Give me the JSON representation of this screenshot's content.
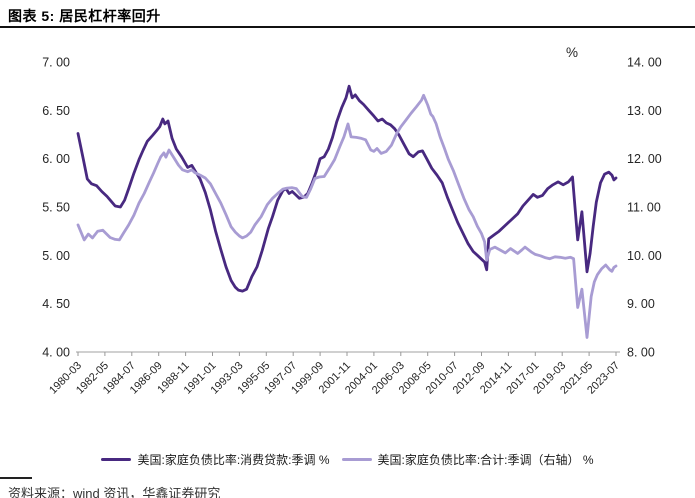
{
  "header": {
    "title": "图表 5: 居民杠杆率回升"
  },
  "footer": {
    "source": "资料来源：wind 资讯，华鑫证券研究"
  },
  "chart_data": {
    "type": "line",
    "title": "图表 5: 居民杠杆率回升",
    "unit_label": "%",
    "grid": false,
    "legend_position": "bottom",
    "left_axis": {
      "min": 4.0,
      "max": 7.0,
      "step": 0.5,
      "tick_labels": [
        "7. 00",
        "6. 50",
        "6. 00",
        "5. 50",
        "5. 00",
        "4. 50",
        "4. 00"
      ]
    },
    "right_axis": {
      "min": 8.0,
      "max": 14.0,
      "step": 1.0,
      "tick_labels": [
        "14. 00",
        "13. 00",
        "12. 00",
        "11. 00",
        "10. 00",
        "9. 00",
        "8. 00"
      ]
    },
    "x_start": "1980-03",
    "x_end": "2023-07",
    "x_tick_labels": [
      "1980-03",
      "1982-05",
      "1984-07",
      "1986-09",
      "1988-11",
      "1991-01",
      "1993-03",
      "1995-05",
      "1997-07",
      "1999-09",
      "2001-11",
      "2004-01",
      "2006-03",
      "2008-05",
      "2010-07",
      "2012-09",
      "2014-11",
      "2017-01",
      "2019-03",
      "2021-05",
      "2023-07"
    ],
    "axis_color": "#b3b3b3",
    "text_color": "#262626",
    "series": [
      {
        "name": "美国:家庭负债比率:消费贷款:季调 %",
        "axis": "left",
        "color": "#482980",
        "points": [
          [
            "1980-03",
            6.26
          ],
          [
            "1980-08",
            6.0
          ],
          [
            "1980-12",
            5.79
          ],
          [
            "1981-04",
            5.74
          ],
          [
            "1981-09",
            5.72
          ],
          [
            "1982-02",
            5.66
          ],
          [
            "1982-07",
            5.61
          ],
          [
            "1982-11",
            5.56
          ],
          [
            "1983-03",
            5.51
          ],
          [
            "1983-08",
            5.5
          ],
          [
            "1983-12",
            5.57
          ],
          [
            "1984-04",
            5.69
          ],
          [
            "1984-09",
            5.85
          ],
          [
            "1985-02",
            5.99
          ],
          [
            "1985-06",
            6.09
          ],
          [
            "1985-10",
            6.18
          ],
          [
            "1986-03",
            6.24
          ],
          [
            "1986-07",
            6.29
          ],
          [
            "1986-10",
            6.33
          ],
          [
            "1987-01",
            6.41
          ],
          [
            "1987-03",
            6.36
          ],
          [
            "1987-06",
            6.39
          ],
          [
            "1987-10",
            6.21
          ],
          [
            "1988-02",
            6.1
          ],
          [
            "1988-07",
            6.02
          ],
          [
            "1989-01",
            5.91
          ],
          [
            "1989-05",
            5.93
          ],
          [
            "1989-09",
            5.86
          ],
          [
            "1990-01",
            5.79
          ],
          [
            "1990-06",
            5.65
          ],
          [
            "1990-11",
            5.47
          ],
          [
            "1991-04",
            5.25
          ],
          [
            "1991-09",
            5.06
          ],
          [
            "1992-02",
            4.88
          ],
          [
            "1992-07",
            4.74
          ],
          [
            "1992-11",
            4.67
          ],
          [
            "1993-02",
            4.64
          ],
          [
            "1993-06",
            4.63
          ],
          [
            "1993-10",
            4.65
          ],
          [
            "1994-03",
            4.78
          ],
          [
            "1994-08",
            4.88
          ],
          [
            "1995-01",
            5.05
          ],
          [
            "1995-07",
            5.28
          ],
          [
            "1995-11",
            5.4
          ],
          [
            "1996-04",
            5.57
          ],
          [
            "1996-09",
            5.67
          ],
          [
            "1996-12",
            5.69
          ],
          [
            "1997-03",
            5.64
          ],
          [
            "1997-06",
            5.66
          ],
          [
            "1997-09",
            5.63
          ],
          [
            "1998-01",
            5.59
          ],
          [
            "1998-05",
            5.6
          ],
          [
            "1998-09",
            5.64
          ],
          [
            "1999-01",
            5.74
          ],
          [
            "1999-05",
            5.86
          ],
          [
            "1999-09",
            6.0
          ],
          [
            "2000-01",
            6.02
          ],
          [
            "2000-05",
            6.1
          ],
          [
            "2000-09",
            6.22
          ],
          [
            "2001-01",
            6.38
          ],
          [
            "2001-06",
            6.53
          ],
          [
            "2001-10",
            6.63
          ],
          [
            "2002-01",
            6.75
          ],
          [
            "2002-04",
            6.63
          ],
          [
            "2002-07",
            6.66
          ],
          [
            "2002-11",
            6.6
          ],
          [
            "2003-03",
            6.56
          ],
          [
            "2003-08",
            6.5
          ],
          [
            "2004-01",
            6.44
          ],
          [
            "2004-05",
            6.39
          ],
          [
            "2004-09",
            6.41
          ],
          [
            "2005-01",
            6.37
          ],
          [
            "2005-05",
            6.35
          ],
          [
            "2005-09",
            6.31
          ],
          [
            "2006-01",
            6.25
          ],
          [
            "2006-06",
            6.15
          ],
          [
            "2006-11",
            6.05
          ],
          [
            "2007-03",
            6.02
          ],
          [
            "2007-08",
            6.07
          ],
          [
            "2007-12",
            6.08
          ],
          [
            "2008-04",
            6.0
          ],
          [
            "2008-09",
            5.9
          ],
          [
            "2009-02",
            5.83
          ],
          [
            "2009-07",
            5.75
          ],
          [
            "2009-12",
            5.6
          ],
          [
            "2010-05",
            5.47
          ],
          [
            "2010-10",
            5.34
          ],
          [
            "2011-03",
            5.23
          ],
          [
            "2011-08",
            5.12
          ],
          [
            "2012-01",
            5.04
          ],
          [
            "2012-05",
            5.0
          ],
          [
            "2012-09",
            4.96
          ],
          [
            "2012-12",
            4.93
          ],
          [
            "2013-02",
            4.85
          ],
          [
            "2013-04",
            5.17
          ],
          [
            "2013-09",
            5.21
          ],
          [
            "2014-02",
            5.25
          ],
          [
            "2014-08",
            5.31
          ],
          [
            "2015-02",
            5.37
          ],
          [
            "2015-08",
            5.43
          ],
          [
            "2016-01",
            5.51
          ],
          [
            "2016-06",
            5.57
          ],
          [
            "2016-11",
            5.63
          ],
          [
            "2017-03",
            5.6
          ],
          [
            "2017-08",
            5.62
          ],
          [
            "2018-01",
            5.69
          ],
          [
            "2018-06",
            5.73
          ],
          [
            "2018-11",
            5.76
          ],
          [
            "2019-04",
            5.73
          ],
          [
            "2019-09",
            5.76
          ],
          [
            "2020-01",
            5.81
          ],
          [
            "2020-06",
            5.16
          ],
          [
            "2020-10",
            5.45
          ],
          [
            "2021-03",
            4.83
          ],
          [
            "2021-06",
            5.02
          ],
          [
            "2021-09",
            5.3
          ],
          [
            "2021-12",
            5.55
          ],
          [
            "2022-04",
            5.75
          ],
          [
            "2022-08",
            5.84
          ],
          [
            "2022-12",
            5.86
          ],
          [
            "2023-03",
            5.83
          ],
          [
            "2023-05",
            5.78
          ],
          [
            "2023-07",
            5.8
          ]
        ]
      },
      {
        "name": "美国:家庭负债比率:合计:季调（右轴） %",
        "axis": "right",
        "color": "#a89cd3",
        "points": [
          [
            "1980-03",
            10.63
          ],
          [
            "1980-09",
            10.32
          ],
          [
            "1981-01",
            10.44
          ],
          [
            "1981-05",
            10.36
          ],
          [
            "1981-10",
            10.5
          ],
          [
            "1982-03",
            10.52
          ],
          [
            "1982-10",
            10.37
          ],
          [
            "1983-03",
            10.33
          ],
          [
            "1983-07",
            10.32
          ],
          [
            "1983-11",
            10.46
          ],
          [
            "1984-04",
            10.63
          ],
          [
            "1984-09",
            10.83
          ],
          [
            "1985-02",
            11.08
          ],
          [
            "1985-07",
            11.28
          ],
          [
            "1985-12",
            11.52
          ],
          [
            "1986-04",
            11.7
          ],
          [
            "1986-08",
            11.9
          ],
          [
            "1986-11",
            12.04
          ],
          [
            "1987-02",
            12.12
          ],
          [
            "1987-04",
            12.03
          ],
          [
            "1987-07",
            12.18
          ],
          [
            "1987-12",
            12.01
          ],
          [
            "1988-04",
            11.87
          ],
          [
            "1988-08",
            11.77
          ],
          [
            "1989-01",
            11.73
          ],
          [
            "1989-05",
            11.77
          ],
          [
            "1989-08",
            11.71
          ],
          [
            "1990-01",
            11.66
          ],
          [
            "1990-06",
            11.6
          ],
          [
            "1990-11",
            11.48
          ],
          [
            "1991-04",
            11.28
          ],
          [
            "1991-09",
            11.08
          ],
          [
            "1992-02",
            10.84
          ],
          [
            "1992-07",
            10.59
          ],
          [
            "1992-11",
            10.48
          ],
          [
            "1993-03",
            10.4
          ],
          [
            "1993-06",
            10.36
          ],
          [
            "1993-10",
            10.4
          ],
          [
            "1994-02",
            10.48
          ],
          [
            "1994-06",
            10.63
          ],
          [
            "1994-12",
            10.8
          ],
          [
            "1995-06",
            11.05
          ],
          [
            "1995-11",
            11.18
          ],
          [
            "1996-04",
            11.28
          ],
          [
            "1996-09",
            11.37
          ],
          [
            "1997-01",
            11.39
          ],
          [
            "1997-06",
            11.4
          ],
          [
            "1997-10",
            11.38
          ],
          [
            "1998-04",
            11.21
          ],
          [
            "1998-08",
            11.2
          ],
          [
            "1998-12",
            11.38
          ],
          [
            "1999-04",
            11.59
          ],
          [
            "1999-08",
            11.62
          ],
          [
            "2000-01",
            11.63
          ],
          [
            "2000-06",
            11.8
          ],
          [
            "2000-11",
            11.98
          ],
          [
            "2001-04",
            12.25
          ],
          [
            "2001-08",
            12.45
          ],
          [
            "2001-12",
            12.72
          ],
          [
            "2002-03",
            12.45
          ],
          [
            "2002-08",
            12.44
          ],
          [
            "2003-01",
            12.42
          ],
          [
            "2003-05",
            12.39
          ],
          [
            "2003-10",
            12.18
          ],
          [
            "2004-01",
            12.15
          ],
          [
            "2004-04",
            12.21
          ],
          [
            "2004-08",
            12.11
          ],
          [
            "2005-01",
            12.15
          ],
          [
            "2005-06",
            12.28
          ],
          [
            "2005-11",
            12.52
          ],
          [
            "2006-03",
            12.66
          ],
          [
            "2006-08",
            12.8
          ],
          [
            "2007-01",
            12.94
          ],
          [
            "2007-06",
            13.07
          ],
          [
            "2007-11",
            13.21
          ],
          [
            "2008-01",
            13.31
          ],
          [
            "2008-05",
            13.11
          ],
          [
            "2008-08",
            12.92
          ],
          [
            "2008-10",
            12.87
          ],
          [
            "2009-01",
            12.73
          ],
          [
            "2009-05",
            12.45
          ],
          [
            "2009-09",
            12.22
          ],
          [
            "2010-01",
            11.98
          ],
          [
            "2010-06",
            11.74
          ],
          [
            "2010-11",
            11.46
          ],
          [
            "2011-04",
            11.18
          ],
          [
            "2011-09",
            10.94
          ],
          [
            "2012-01",
            10.8
          ],
          [
            "2012-05",
            10.6
          ],
          [
            "2012-09",
            10.45
          ],
          [
            "2012-12",
            10.28
          ],
          [
            "2013-02",
            9.9
          ],
          [
            "2013-05",
            10.12
          ],
          [
            "2013-10",
            10.17
          ],
          [
            "2014-03",
            10.11
          ],
          [
            "2014-08",
            10.05
          ],
          [
            "2015-01",
            10.14
          ],
          [
            "2015-08",
            10.04
          ],
          [
            "2015-12",
            10.11
          ],
          [
            "2016-03",
            10.17
          ],
          [
            "2016-09",
            10.07
          ],
          [
            "2017-01",
            10.02
          ],
          [
            "2017-06",
            9.99
          ],
          [
            "2017-11",
            9.95
          ],
          [
            "2018-03",
            9.93
          ],
          [
            "2018-08",
            9.97
          ],
          [
            "2019-01",
            9.96
          ],
          [
            "2019-06",
            9.94
          ],
          [
            "2019-11",
            9.96
          ],
          [
            "2020-02",
            9.93
          ],
          [
            "2020-06",
            8.92
          ],
          [
            "2020-10",
            9.3
          ],
          [
            "2021-03",
            8.3
          ],
          [
            "2021-07",
            9.15
          ],
          [
            "2021-10",
            9.45
          ],
          [
            "2022-01",
            9.6
          ],
          [
            "2022-05",
            9.72
          ],
          [
            "2022-09",
            9.8
          ],
          [
            "2023-01",
            9.7
          ],
          [
            "2023-03",
            9.67
          ],
          [
            "2023-05",
            9.75
          ],
          [
            "2023-07",
            9.78
          ]
        ]
      }
    ]
  }
}
